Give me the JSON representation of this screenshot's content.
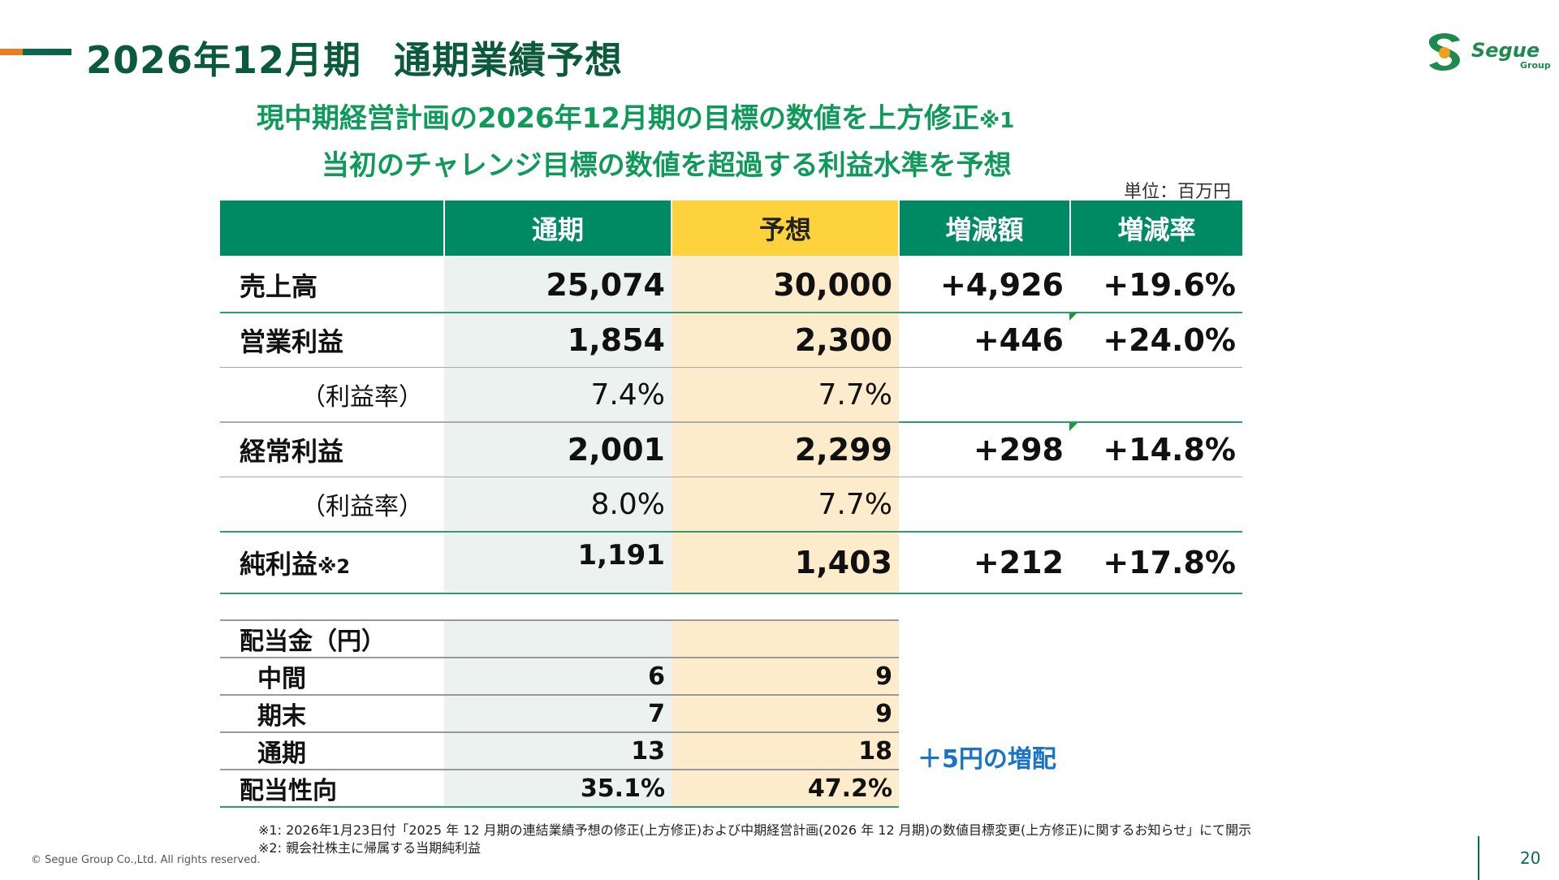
{
  "header": {
    "title_period": "2026年12月期",
    "title_main": "通期業績予想",
    "logo_text": "Segue",
    "logo_sub": "Group"
  },
  "subtitle": {
    "line1": "現中期経営計画の2026年12月期の目標の数値を上方修正",
    "line1_mark": "※1",
    "line2": "当初のチャレンジ目標の数値を超過する利益水準を予想"
  },
  "unit": "単位：百万円",
  "table": {
    "headers": [
      "",
      "通期",
      "予想",
      "増減額",
      "増減率"
    ],
    "rows": [
      {
        "label": "売上高",
        "actual": "25,074",
        "forecast": "30,000",
        "change": "+4,926",
        "rate": "+19.6%"
      },
      {
        "label": "営業利益",
        "actual": "1,854",
        "forecast": "2,300",
        "change": "+446",
        "rate": "+24.0%"
      },
      {
        "label": "（利益率）",
        "actual": "7.4%",
        "forecast": "7.7%",
        "change": "",
        "rate": ""
      },
      {
        "label": "経常利益",
        "actual": "2,001",
        "forecast": "2,299",
        "change": "+298",
        "rate": "+14.8%"
      },
      {
        "label": "（利益率）",
        "actual": "8.0%",
        "forecast": "7.7%",
        "change": "",
        "rate": ""
      },
      {
        "label": "純利益",
        "label_mark": "※2",
        "actual": "1,191",
        "forecast": "1,403",
        "change": "+212",
        "rate": "+17.8%"
      }
    ]
  },
  "dividend": {
    "header": "配当金（円）",
    "rows": [
      {
        "label": "中間",
        "actual": "6",
        "forecast": "9"
      },
      {
        "label": "期末",
        "actual": "7",
        "forecast": "9"
      },
      {
        "label": "通期",
        "actual": "13",
        "forecast": "18"
      },
      {
        "label": "配当性向",
        "actual": "35.1%",
        "forecast": "47.2%"
      }
    ],
    "increase_note": "＋5円の増配"
  },
  "notes": {
    "note1": "※1: 2026年1月23日付「2025 年 12 月期の連結業績予想の修正(上方修正)および中期経営計画(2026 年 12 月期)の数値目標変更(上方修正)に関するお知らせ」にて開示",
    "note2": "※2: 親会社株主に帰属する当期純利益"
  },
  "footer": {
    "copyright": "© Segue Group Co.,Ltd. All rights reserved.",
    "page_number": "20"
  },
  "colors": {
    "title": "#0b5a3b",
    "header_green": "#008a63",
    "header_yellow": "#fdd23d",
    "subtitle_green": "#0f9a5a",
    "note_blue": "#1a73c8"
  }
}
